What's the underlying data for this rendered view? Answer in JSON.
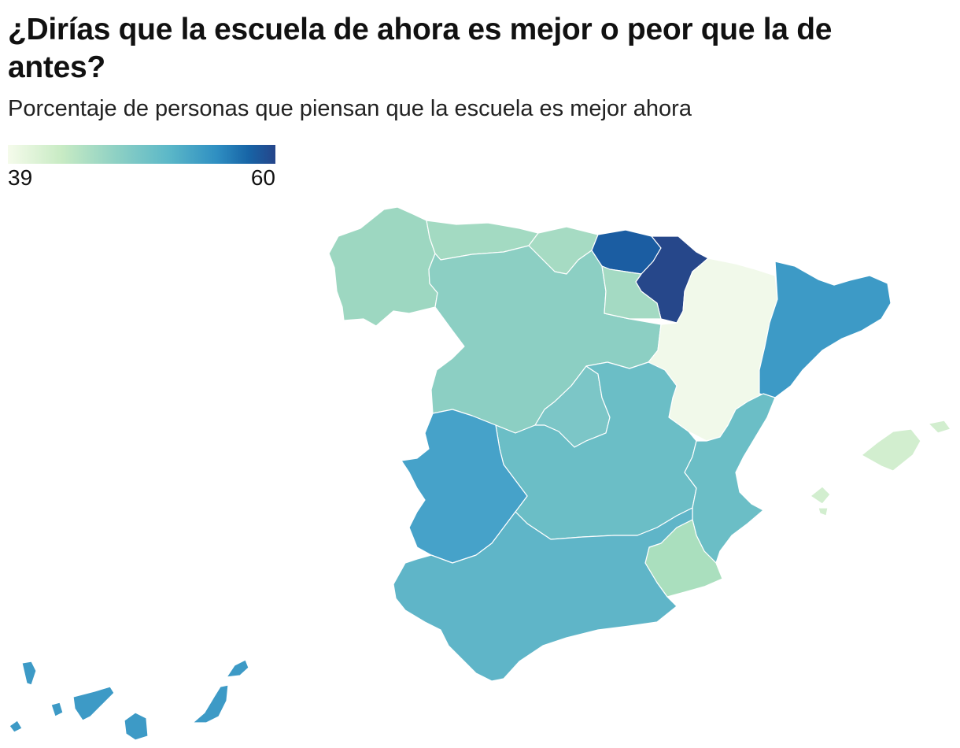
{
  "header": {
    "title": "¿Dirías que la escuela de ahora es mejor o peor que la de antes?",
    "subtitle": "Porcentaje de personas que piensan que la escuela es mejor ahora"
  },
  "legend": {
    "min_label": "39",
    "max_label": "60",
    "min": 39,
    "max": 60
  },
  "colors": {
    "galicia": "#9dd7c1",
    "asturias": "#a3dac2",
    "cantabria": "#a6dbc3",
    "castilla_y_leon": "#8ccfc3",
    "pais_vasco": "#1b5da2",
    "navarra": "#26478a",
    "la_rioja": "#a4dac3",
    "aragon": "#f1f9ea",
    "cataluna": "#3d9ac6",
    "madrid": "#7cc6c7",
    "castilla_la_mancha": "#6bbec6",
    "extremadura": "#46a2c9",
    "comunidad_valenciana": "#6bbec6",
    "murcia": "#aadfbe",
    "andalucia": "#5fb5c8",
    "baleares": "#d2eecf",
    "canarias": "#3d9ac6"
  },
  "regions": [
    {
      "id": "galicia",
      "name": "Galicia"
    },
    {
      "id": "asturias",
      "name": "Asturias"
    },
    {
      "id": "cantabria",
      "name": "Cantabria"
    },
    {
      "id": "castilla_y_leon",
      "name": "Castilla y León"
    },
    {
      "id": "pais_vasco",
      "name": "País Vasco"
    },
    {
      "id": "navarra",
      "name": "Navarra"
    },
    {
      "id": "la_rioja",
      "name": "La Rioja"
    },
    {
      "id": "aragon",
      "name": "Aragón"
    },
    {
      "id": "cataluna",
      "name": "Cataluña"
    },
    {
      "id": "madrid",
      "name": "Madrid"
    },
    {
      "id": "castilla_la_mancha",
      "name": "Castilla-La Mancha"
    },
    {
      "id": "extremadura",
      "name": "Extremadura"
    },
    {
      "id": "comunidad_valenciana",
      "name": "Comunidad Valenciana"
    },
    {
      "id": "murcia",
      "name": "Murcia"
    },
    {
      "id": "andalucia",
      "name": "Andalucía"
    },
    {
      "id": "baleares",
      "name": "Islas Baleares"
    },
    {
      "id": "canarias",
      "name": "Canarias"
    }
  ]
}
